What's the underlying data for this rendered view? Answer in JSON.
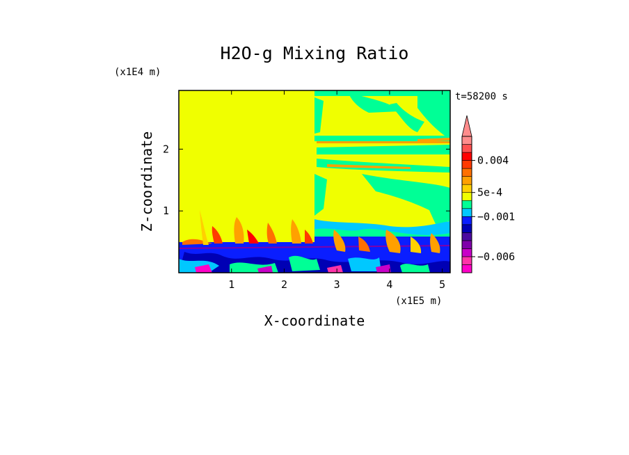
{
  "chart_data": {
    "type": "heatmap",
    "title": "H2O-g Mixing Ratio",
    "xlabel": "X-coordinate",
    "ylabel": "Z-coordinate",
    "x_scale_label": "(x1E5 m)",
    "y_scale_label": "(x1E4 m)",
    "time_label": "t=58200 s",
    "xlim": [
      0,
      5.15
    ],
    "ylim": [
      0,
      2.95
    ],
    "x_ticks": [
      1,
      2,
      3,
      4,
      5
    ],
    "y_ticks": [
      1,
      2
    ],
    "x_tick_labels": [
      "1",
      "2",
      "3",
      "4",
      "5"
    ],
    "y_tick_labels": [
      "1",
      "2"
    ],
    "colorbar": {
      "levels": [
        -0.008,
        -0.007,
        -0.006,
        -0.005,
        -0.004,
        -0.003,
        -0.002,
        -0.001,
        -0.0005,
        0,
        0.0005,
        0.001,
        0.002,
        0.003,
        0.004,
        0.005,
        0.006,
        0.008
      ],
      "colors": [
        "#ff00c8",
        "#ff33a8",
        "#c800c8",
        "#7f00aa",
        "#4b0aa0",
        "#0000b4",
        "#0a1eff",
        "#00c8ff",
        "#00ff96",
        "#f0ff00",
        "#ffd000",
        "#ffa000",
        "#ff7000",
        "#ff3a00",
        "#ff0000",
        "#ff5050",
        "#ff8c8c"
      ],
      "tick_labels": [
        {
          "value": 0.004,
          "label": "0.004"
        },
        {
          "value": 0.0005,
          "label": "5e-4"
        },
        {
          "value": -0.001,
          "label": "−0.001"
        },
        {
          "value": -0.006,
          "label": "−0.006"
        }
      ]
    },
    "fields": {
      "background": "#f0ff00",
      "boundary_layer_top": 0.5,
      "split_x": 2.55
    }
  }
}
